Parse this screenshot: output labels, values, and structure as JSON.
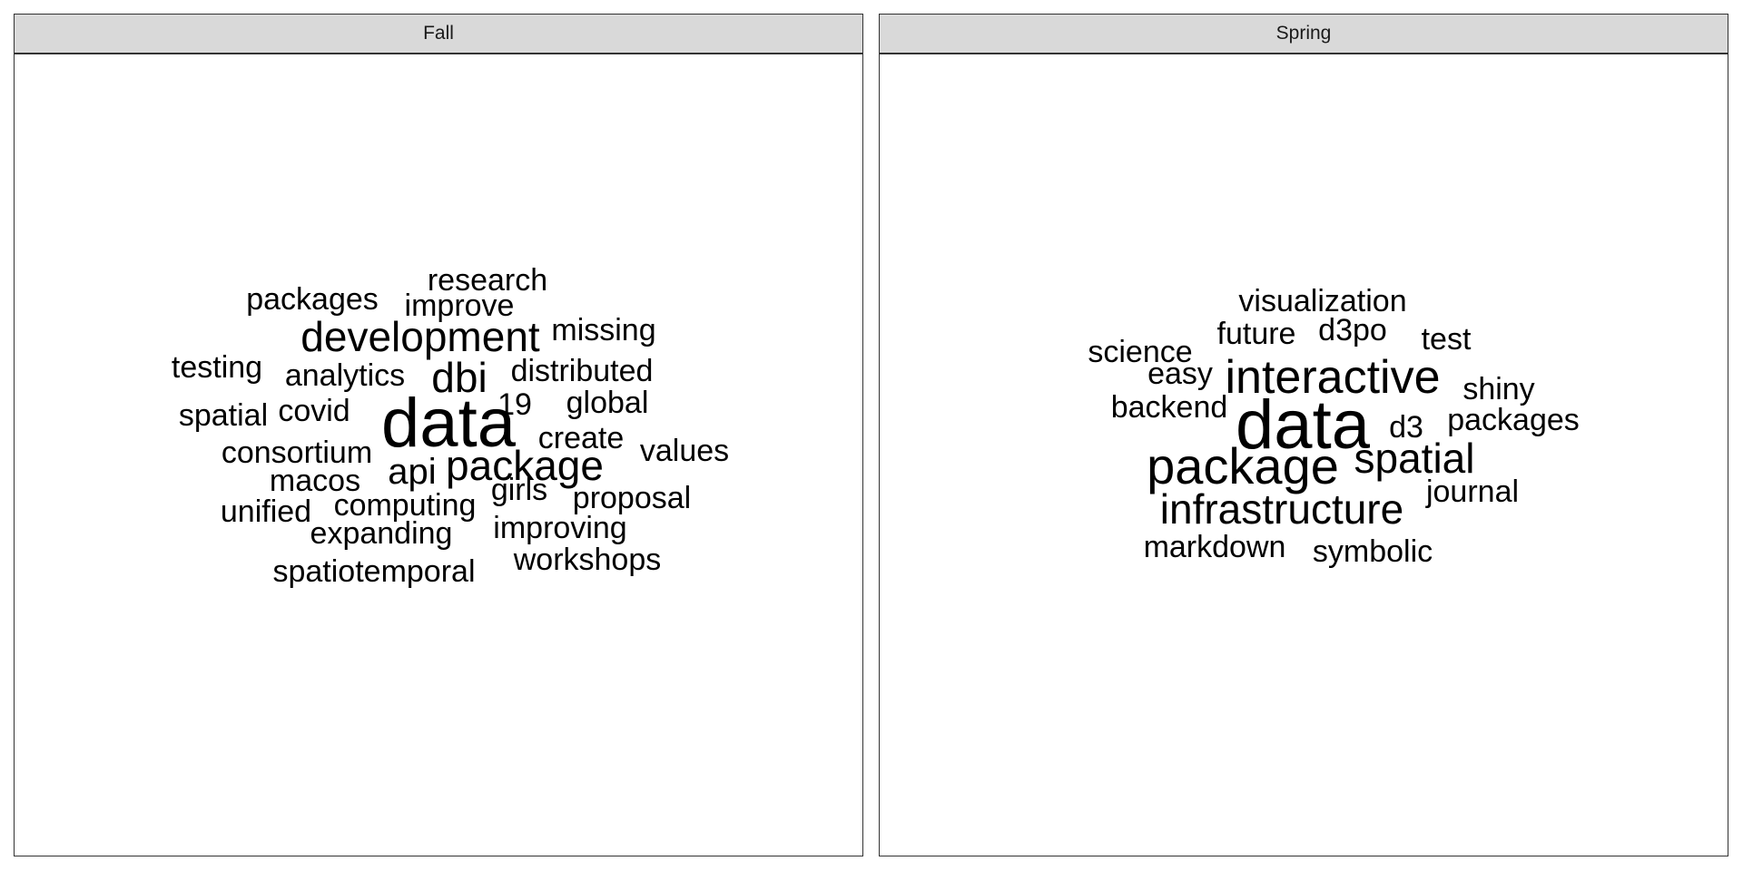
{
  "chart_data": [
    {
      "type": "wordcloud",
      "panel": "Fall",
      "words": [
        {
          "text": "data",
          "weight": 5
        },
        {
          "text": "development",
          "weight": 3
        },
        {
          "text": "dbi",
          "weight": 3
        },
        {
          "text": "package",
          "weight": 3
        },
        {
          "text": "api",
          "weight": 2.5
        },
        {
          "text": "research",
          "weight": 2
        },
        {
          "text": "improve",
          "weight": 2
        },
        {
          "text": "packages",
          "weight": 2
        },
        {
          "text": "missing",
          "weight": 2
        },
        {
          "text": "testing",
          "weight": 2
        },
        {
          "text": "analytics",
          "weight": 2
        },
        {
          "text": "distributed",
          "weight": 2
        },
        {
          "text": "spatial",
          "weight": 2
        },
        {
          "text": "covid",
          "weight": 2
        },
        {
          "text": "19",
          "weight": 2
        },
        {
          "text": "global",
          "weight": 2
        },
        {
          "text": "create",
          "weight": 2
        },
        {
          "text": "consortium",
          "weight": 2
        },
        {
          "text": "values",
          "weight": 2
        },
        {
          "text": "macos",
          "weight": 2
        },
        {
          "text": "girls",
          "weight": 2
        },
        {
          "text": "proposal",
          "weight": 2
        },
        {
          "text": "unified",
          "weight": 2
        },
        {
          "text": "computing",
          "weight": 2
        },
        {
          "text": "expanding",
          "weight": 2
        },
        {
          "text": "improving",
          "weight": 2
        },
        {
          "text": "workshops",
          "weight": 2
        },
        {
          "text": "spatiotemporal",
          "weight": 2
        }
      ]
    },
    {
      "type": "wordcloud",
      "panel": "Spring",
      "words": [
        {
          "text": "data",
          "weight": 5
        },
        {
          "text": "package",
          "weight": 4
        },
        {
          "text": "interactive",
          "weight": 3.5
        },
        {
          "text": "infrastructure",
          "weight": 3
        },
        {
          "text": "spatial",
          "weight": 3
        },
        {
          "text": "visualization",
          "weight": 2
        },
        {
          "text": "future",
          "weight": 2
        },
        {
          "text": "d3po",
          "weight": 2
        },
        {
          "text": "test",
          "weight": 2
        },
        {
          "text": "science",
          "weight": 2
        },
        {
          "text": "easy",
          "weight": 2
        },
        {
          "text": "shiny",
          "weight": 2
        },
        {
          "text": "backend",
          "weight": 2
        },
        {
          "text": "d3",
          "weight": 2
        },
        {
          "text": "packages",
          "weight": 2
        },
        {
          "text": "journal",
          "weight": 2
        },
        {
          "text": "markdown",
          "weight": 2
        },
        {
          "text": "symbolic",
          "weight": 2
        }
      ]
    }
  ]
}
